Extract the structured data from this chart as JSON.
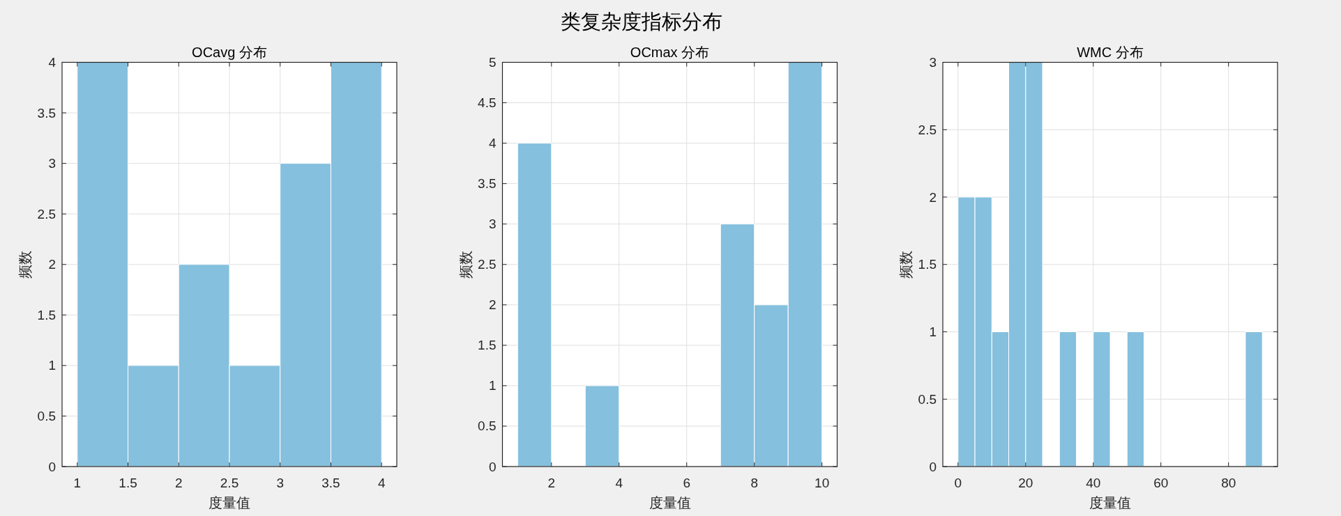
{
  "chart_data": [
    {
      "type": "other",
      "title": "类复杂度指标分布"
    },
    {
      "type": "histogram",
      "title": "OCavg 分布",
      "xlabel": "度量值",
      "ylabel": "频数",
      "bins": [
        1,
        1.5,
        2,
        2.5,
        3,
        3.5,
        4
      ],
      "values": [
        4,
        1,
        2,
        1,
        3,
        4
      ],
      "color": "#85c0de",
      "xlim": [
        0.85,
        4.15
      ],
      "xticks": [
        1,
        1.5,
        2,
        2.5,
        3,
        3.5,
        4
      ],
      "ylim": [
        0,
        4
      ],
      "yticks": [
        0,
        0.5,
        1,
        1.5,
        2,
        2.5,
        3,
        3.5,
        4
      ],
      "grid": true
    },
    {
      "type": "histogram",
      "title": "OCmax 分布",
      "xlabel": "度量值",
      "ylabel": "频数",
      "bins": [
        1,
        2,
        3,
        4,
        5,
        6,
        7,
        8,
        9,
        10
      ],
      "values": [
        4,
        0,
        1,
        0,
        0,
        0,
        3,
        2,
        5
      ],
      "color": "#85c0de",
      "xlim": [
        0.55,
        10.45
      ],
      "xticks": [
        2,
        4,
        6,
        8,
        10
      ],
      "ylim": [
        0,
        5
      ],
      "yticks": [
        0,
        0.5,
        1,
        1.5,
        2,
        2.5,
        3,
        3.5,
        4,
        4.5,
        5
      ],
      "grid": true
    },
    {
      "type": "histogram",
      "title": "WMC 分布",
      "xlabel": "度量值",
      "ylabel": "频数",
      "bins": [
        0,
        5,
        10,
        15,
        20,
        25,
        30,
        35,
        40,
        45,
        50,
        55,
        60,
        65,
        70,
        75,
        80,
        85,
        90
      ],
      "values": [
        2,
        2,
        1,
        3,
        3,
        0,
        1,
        0,
        1,
        0,
        1,
        0,
        0,
        0,
        0,
        0,
        0,
        1
      ],
      "color": "#85c0de",
      "xlim": [
        -4.5,
        94.5
      ],
      "xticks": [
        0,
        20,
        40,
        60,
        80
      ],
      "ylim": [
        0,
        3
      ],
      "yticks": [
        0,
        0.5,
        1,
        1.5,
        2,
        2.5,
        3
      ],
      "grid": true
    }
  ]
}
